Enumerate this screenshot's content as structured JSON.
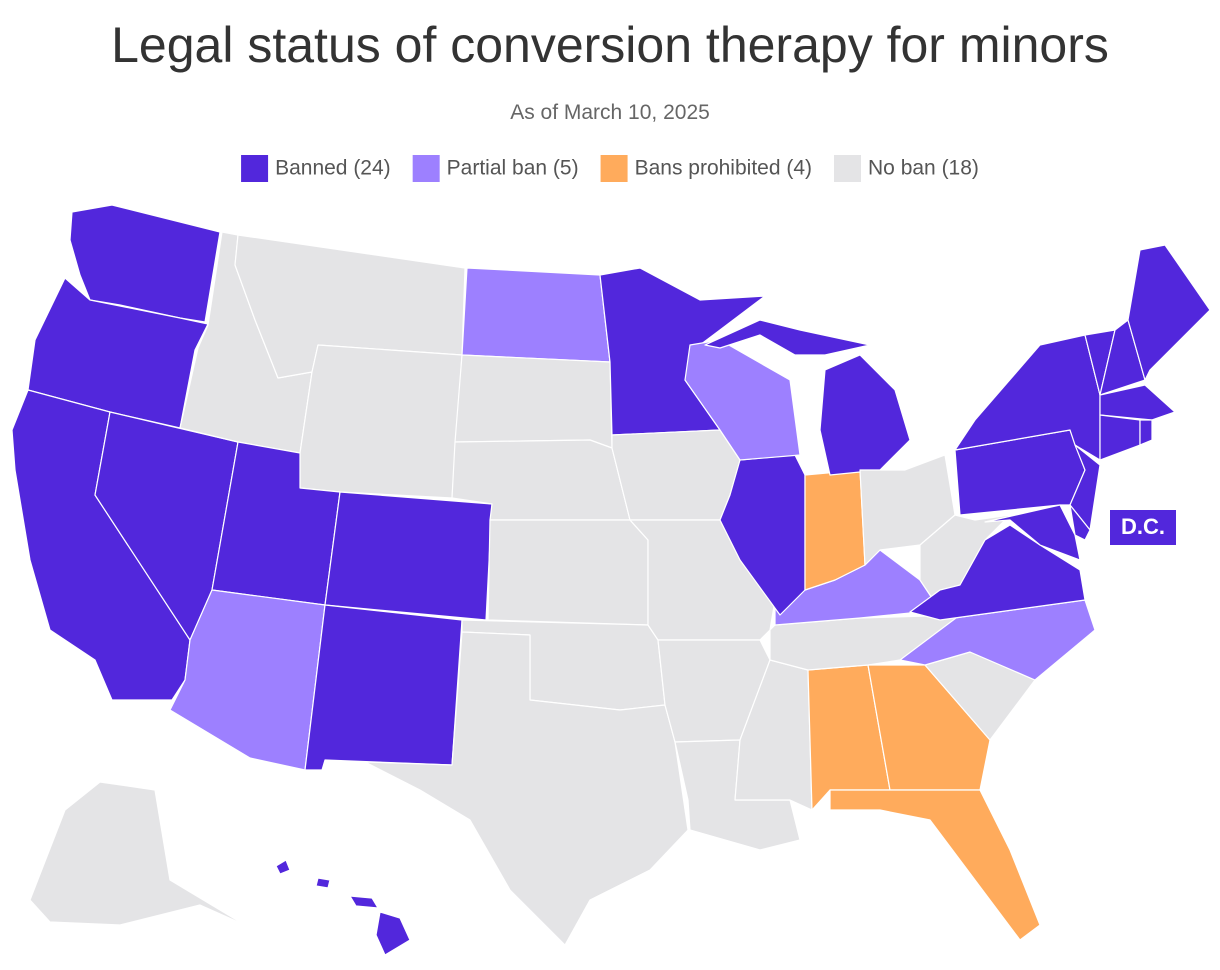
{
  "title": "Legal status of conversion therapy for minors",
  "subtitle": "As of March 10, 2025",
  "legend": [
    {
      "label": "Banned (24)",
      "color": "#5227dc"
    },
    {
      "label": "Partial ban (5)",
      "color": "#9d80ff"
    },
    {
      "label": "Bans prohibited (4)",
      "color": "#ffab5c"
    },
    {
      "label": "No ban (18)",
      "color": "#e4e4e6"
    }
  ],
  "dc_label": "D.C."
}
